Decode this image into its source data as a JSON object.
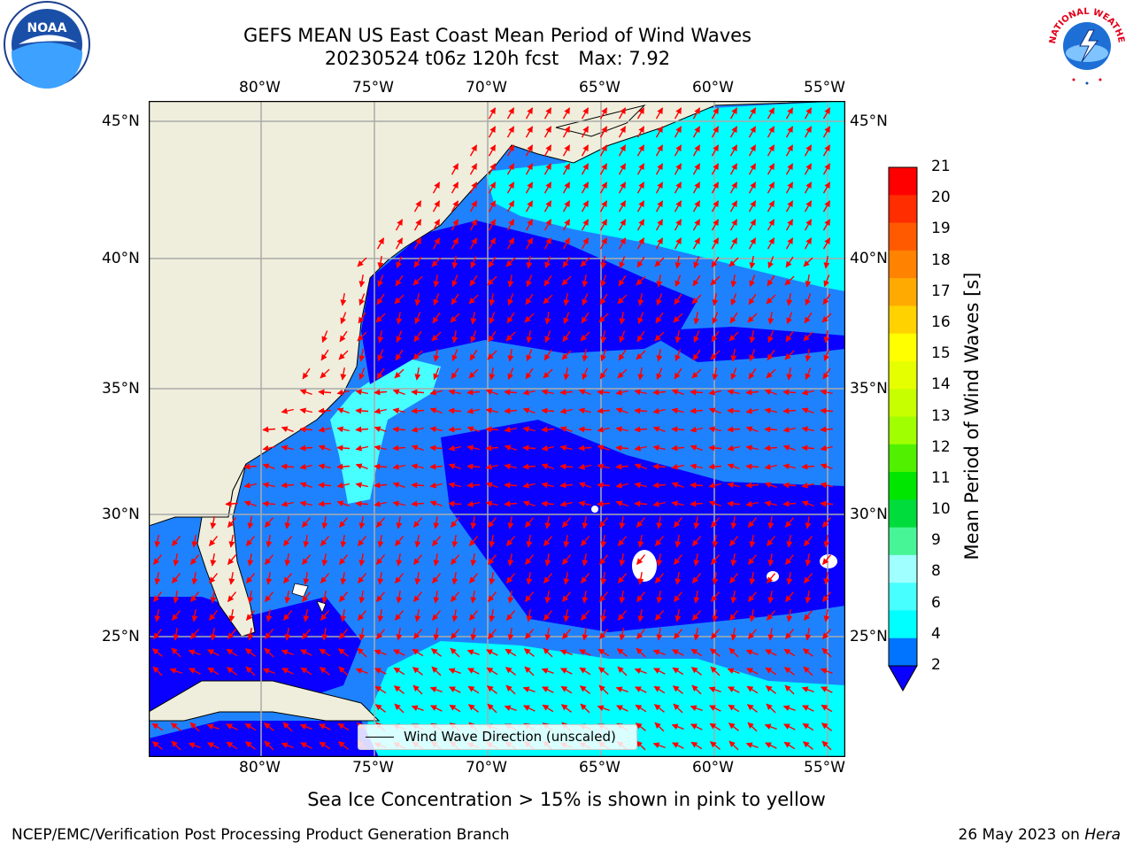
{
  "title": {
    "line1": "GEFS MEAN US East Coast Mean Period of Wind Waves",
    "line2_main": "20230524 t06z 120h fcst",
    "line2_max": "Max: 7.92"
  },
  "axes": {
    "lon_labels": [
      "80°W",
      "75°W",
      "70°W",
      "65°W",
      "60°W",
      "55°W"
    ],
    "lat_labels": [
      "45°N",
      "40°N",
      "35°N",
      "30°N",
      "25°N"
    ]
  },
  "colorbar": {
    "label": "Mean Period of Wind Waves [s]",
    "ticks": [
      "21",
      "20",
      "19",
      "18",
      "17",
      "16",
      "15",
      "14",
      "13",
      "12",
      "11",
      "10",
      "9",
      "8",
      "6",
      "4",
      "2"
    ],
    "colors": [
      "#ff0000",
      "#ff2d00",
      "#ff5a00",
      "#ff8200",
      "#ffaa00",
      "#ffd200",
      "#ffff00",
      "#e6ff00",
      "#c8ff00",
      "#a0ff00",
      "#50f000",
      "#00e600",
      "#00dc3c",
      "#48f596",
      "#a0ffff",
      "#48ffff",
      "#00ffff",
      "#0073ff"
    ],
    "under_color": "#0a00ff"
  },
  "legend": {
    "label": "Wind Wave Direction (unscaled)"
  },
  "map_colors": {
    "land": "#efeedc",
    "ocean_deep": "#0a00ff",
    "ocean_mid": "#1e82ff",
    "ocean_light": "#00ffff",
    "arrow": "#ff0000"
  },
  "logos": {
    "left": "NOAA",
    "right": "NATIONAL WEATHER SERVICE"
  },
  "footer": {
    "note": "Sea Ice Concentration > 15% is shown in pink to yellow",
    "left": "NCEP/EMC/Verification Post Processing Product Generation Branch",
    "right_date": "26 May 2023 on ",
    "right_host": "Hera"
  }
}
